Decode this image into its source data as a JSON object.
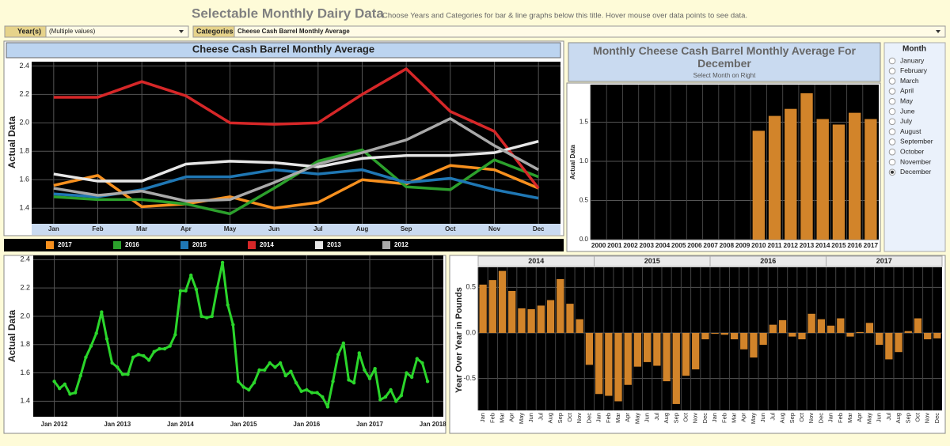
{
  "header": {
    "title": "Selectable Monthly Dairy Data",
    "subtitle": "Choose Years and Categories for bar & line graphs below this title. Hover mouse over data points to see data."
  },
  "filters": {
    "years_label": "Year(s)",
    "years_value": "(Multiple values)",
    "categories_label": "Categories",
    "categories_value": "Cheese Cash Barrel Monthly Average"
  },
  "month_selector": {
    "title": "Month",
    "options": [
      "January",
      "February",
      "March",
      "April",
      "May",
      "June",
      "July",
      "August",
      "September",
      "October",
      "November",
      "December"
    ],
    "selected_index": 11
  },
  "chart_data": [
    {
      "type": "line",
      "title": "Cheese Cash Barrel Monthly Average",
      "ylabel": "Actual Data",
      "categories": [
        "Jan",
        "Feb",
        "Mar",
        "Apr",
        "May",
        "Jun",
        "Jul",
        "Aug",
        "Sep",
        "Oct",
        "Nov",
        "Dec"
      ],
      "series": [
        {
          "name": "2017",
          "color": "#f7901e",
          "values": [
            1.56,
            1.63,
            1.41,
            1.43,
            1.48,
            1.4,
            1.44,
            1.6,
            1.57,
            1.7,
            1.67,
            1.54
          ]
        },
        {
          "name": "2016",
          "color": "#2ca02c",
          "values": [
            1.48,
            1.46,
            1.46,
            1.43,
            1.36,
            1.54,
            1.73,
            1.81,
            1.55,
            1.53,
            1.74,
            1.62
          ]
        },
        {
          "name": "2015",
          "color": "#1f77b4",
          "values": [
            1.5,
            1.48,
            1.53,
            1.62,
            1.62,
            1.67,
            1.64,
            1.67,
            1.58,
            1.61,
            1.53,
            1.47
          ]
        },
        {
          "name": "2014",
          "color": "#d62728",
          "values": [
            2.18,
            2.18,
            2.29,
            2.19,
            2.0,
            1.99,
            2.0,
            2.2,
            2.38,
            2.08,
            1.94,
            1.54
          ]
        },
        {
          "name": "2013",
          "color": "#e6e6e6",
          "values": [
            1.64,
            1.59,
            1.59,
            1.71,
            1.73,
            1.72,
            1.69,
            1.75,
            1.77,
            1.77,
            1.79,
            1.87
          ]
        },
        {
          "name": "2012",
          "color": "#a9a9a9",
          "values": [
            1.54,
            1.49,
            1.52,
            1.45,
            1.46,
            1.58,
            1.71,
            1.79,
            1.88,
            2.03,
            1.84,
            1.67
          ]
        }
      ],
      "ylim": [
        1.29,
        2.43
      ],
      "yticks": [
        1.4,
        1.6,
        1.8,
        {
          "value": 2.0,
          "label": "2.0"
        },
        2.2,
        2.4
      ],
      "grid": true
    },
    {
      "type": "bar",
      "title": "Monthly Cheese Cash Barrel Monthly Average For December",
      "subtitle": "Select Month on Right",
      "ylabel": "Actual Data",
      "categories": [
        "2000",
        "2001",
        "2002",
        "2003",
        "2004",
        "2005",
        "2006",
        "2007",
        "2008",
        "2009",
        "2010",
        "2011",
        "2012",
        "2013",
        "2014",
        "2015",
        "2016",
        "2017"
      ],
      "values": [
        null,
        null,
        null,
        null,
        null,
        null,
        null,
        null,
        null,
        null,
        1.39,
        1.58,
        1.67,
        1.87,
        1.54,
        1.47,
        1.62,
        1.54
      ],
      "color": "#d2842a",
      "ylim": [
        0,
        1.98
      ],
      "yticks": [
        {
          "value": 0,
          "label": "0.0"
        },
        0.5,
        {
          "value": 1,
          "label": "1.0"
        },
        1.5
      ],
      "grid": true
    },
    {
      "type": "line",
      "ylabel": "Actual Data",
      "color": "#2bd62b",
      "x": [
        "2012-01",
        "2012-02",
        "2012-03",
        "2012-04",
        "2012-05",
        "2012-06",
        "2012-07",
        "2012-08",
        "2012-09",
        "2012-10",
        "2012-11",
        "2012-12",
        "2013-01",
        "2013-02",
        "2013-03",
        "2013-04",
        "2013-05",
        "2013-06",
        "2013-07",
        "2013-08",
        "2013-09",
        "2013-10",
        "2013-11",
        "2013-12",
        "2014-01",
        "2014-02",
        "2014-03",
        "2014-04",
        "2014-05",
        "2014-06",
        "2014-07",
        "2014-08",
        "2014-09",
        "2014-10",
        "2014-11",
        "2014-12",
        "2015-01",
        "2015-02",
        "2015-03",
        "2015-04",
        "2015-05",
        "2015-06",
        "2015-07",
        "2015-08",
        "2015-09",
        "2015-10",
        "2015-11",
        "2015-12",
        "2016-01",
        "2016-02",
        "2016-03",
        "2016-04",
        "2016-05",
        "2016-06",
        "2016-07",
        "2016-08",
        "2016-09",
        "2016-10",
        "2016-11",
        "2016-12",
        "2017-01",
        "2017-02",
        "2017-03",
        "2017-04",
        "2017-05",
        "2017-06",
        "2017-07",
        "2017-08",
        "2017-09",
        "2017-10",
        "2017-11",
        "2017-12"
      ],
      "values": [
        1.54,
        1.49,
        1.52,
        1.45,
        1.46,
        1.58,
        1.71,
        1.79,
        1.88,
        2.03,
        1.84,
        1.67,
        1.64,
        1.59,
        1.59,
        1.71,
        1.73,
        1.72,
        1.69,
        1.75,
        1.77,
        1.77,
        1.79,
        1.87,
        2.18,
        2.18,
        2.29,
        2.19,
        2.0,
        1.99,
        2.0,
        2.2,
        2.38,
        2.08,
        1.94,
        1.54,
        1.5,
        1.48,
        1.53,
        1.62,
        1.62,
        1.67,
        1.64,
        1.67,
        1.58,
        1.61,
        1.53,
        1.47,
        1.48,
        1.46,
        1.46,
        1.43,
        1.36,
        1.54,
        1.73,
        1.81,
        1.55,
        1.53,
        1.74,
        1.62,
        1.56,
        1.63,
        1.41,
        1.43,
        1.48,
        1.4,
        1.44,
        1.6,
        1.57,
        1.7,
        1.67,
        1.54
      ],
      "xlim": [
        "2011-09",
        "2018-03"
      ],
      "xticks": [
        {
          "value": "2012-01",
          "label": "Jan 2012"
        },
        {
          "value": "2013-01",
          "label": "Jan 2013"
        },
        {
          "value": "2014-01",
          "label": "Jan 2014"
        },
        {
          "value": "2015-01",
          "label": "Jan 2015"
        },
        {
          "value": "2016-01",
          "label": "Jan 2016"
        },
        {
          "value": "2017-01",
          "label": "Jan 2017"
        },
        {
          "value": "2018-01",
          "label": "Jan 2018"
        }
      ],
      "ylim": [
        1.29,
        2.43
      ],
      "yticks": [
        1.4,
        1.6,
        1.8,
        {
          "value": 2.0,
          "label": "2.0"
        },
        2.2,
        2.4
      ],
      "grid": true
    },
    {
      "type": "bar",
      "ylabel": "Year Over Year in Pounds",
      "color": "#d2842a",
      "groups": [
        "2014",
        "2015",
        "2016",
        "2017"
      ],
      "categories": [
        "Jan",
        "Feb",
        "Mar",
        "Apr",
        "May",
        "Jun",
        "Jul",
        "Aug",
        "Sep",
        "Oct",
        "Nov",
        "Dec",
        "Jan",
        "Feb",
        "Mar",
        "Apr",
        "May",
        "Jun",
        "Jul",
        "Aug",
        "Sep",
        "Oct",
        "Nov",
        "Dec",
        "Jan",
        "Feb",
        "Mar",
        "Apr",
        "May",
        "Jun",
        "Jul",
        "Aug",
        "Sep",
        "Oct",
        "Nov",
        "Dec",
        "Jan",
        "Feb",
        "Mar",
        "Apr",
        "May",
        "Jun",
        "Jul",
        "Aug",
        "Sep",
        "Oct",
        "Nov",
        "Dec"
      ],
      "values": [
        0.53,
        0.58,
        0.68,
        0.46,
        0.27,
        0.26,
        0.3,
        0.36,
        0.59,
        0.32,
        0.15,
        -0.35,
        -0.67,
        -0.69,
        -0.75,
        -0.57,
        -0.37,
        -0.32,
        -0.36,
        -0.53,
        -0.78,
        -0.47,
        -0.4,
        -0.07,
        -0.01,
        -0.02,
        -0.07,
        -0.18,
        -0.27,
        -0.13,
        0.09,
        0.14,
        -0.04,
        -0.07,
        0.21,
        0.15,
        0.08,
        0.16,
        -0.04,
        0.01,
        0.11,
        -0.13,
        -0.29,
        -0.21,
        0.02,
        0.16,
        -0.07,
        -0.06
      ],
      "ylim": [
        -0.85,
        0.72
      ],
      "yticks": [
        -0.5,
        {
          "value": 0,
          "label": "0.0"
        },
        0.5
      ],
      "grid": true
    }
  ]
}
